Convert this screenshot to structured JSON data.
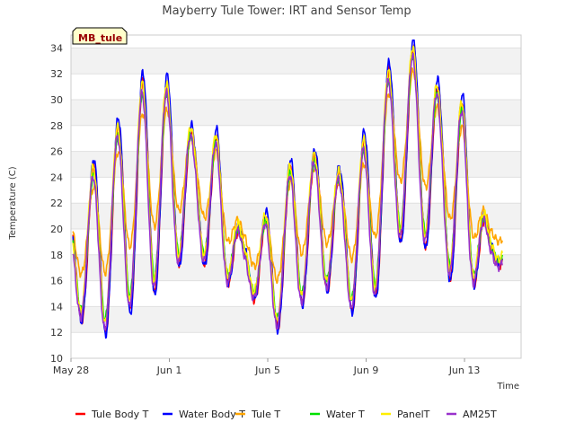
{
  "chart_data": {
    "type": "line",
    "title": "Mayberry Tule Tower: IRT and Sensor Temp",
    "xlabel": "Time",
    "ylabel": "Temperature (C)",
    "badge": "MB_tule",
    "ylim": [
      10,
      35
    ],
    "yticks": [
      10,
      12,
      14,
      16,
      18,
      20,
      22,
      24,
      26,
      28,
      30,
      32,
      34
    ],
    "xlim_days": [
      0,
      18.3
    ],
    "xticks": [
      {
        "day": 0,
        "label": "May 28"
      },
      {
        "day": 4,
        "label": "Jun 1"
      },
      {
        "day": 8,
        "label": "Jun 5"
      },
      {
        "day": 12,
        "label": "Jun 9"
      },
      {
        "day": 16,
        "label": "Jun 13"
      }
    ],
    "day_profile": {
      "day": [
        0,
        1,
        2,
        3,
        4,
        5,
        6,
        7,
        8,
        9,
        10,
        11,
        12,
        13,
        14,
        15,
        16,
        17
      ],
      "min": [
        14.0,
        11.0,
        13.0,
        14.2,
        16.0,
        18.5,
        15.0,
        16.5,
        11.5,
        13.0,
        15.5,
        14.5,
        12.0,
        18.5,
        19.5,
        17.0,
        14.5,
        17.0
      ],
      "max": [
        20.5,
        25.0,
        28.0,
        31.5,
        31.0,
        27.0,
        27.0,
        18.5,
        21.0,
        25.0,
        25.5,
        24.0,
        27.0,
        32.5,
        34.0,
        30.5,
        29.5,
        19.0
      ]
    },
    "series": [
      {
        "name": "Tule Body T",
        "color": "#ff0000",
        "amp": 1.0,
        "offset": 0.2
      },
      {
        "name": "Water Body T",
        "color": "#0000ff",
        "amp": 1.06,
        "offset": 0.4
      },
      {
        "name": "Tule T",
        "color": "#ffa500",
        "amp": 0.55,
        "offset": 1.6
      },
      {
        "name": "Water T",
        "color": "#00e000",
        "amp": 0.88,
        "offset": 0.4
      },
      {
        "name": "PanelT",
        "color": "#ffee00",
        "amp": 0.95,
        "offset": 0.6
      },
      {
        "name": "AM25T",
        "color": "#9932cc",
        "amp": 0.93,
        "offset": 0.0
      }
    ]
  }
}
